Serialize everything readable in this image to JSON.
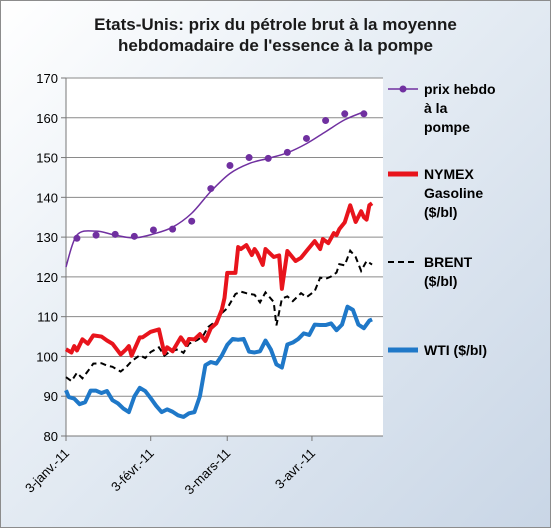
{
  "chart_data": {
    "type": "line",
    "title_line1": "Etats-Unis: prix du pétrole brut  à la moyenne",
    "title_line2": "hebdomadaire de l'essence à la pompe",
    "xlabel": "",
    "ylabel": "",
    "ylim": [
      80,
      170
    ],
    "y_ticks": [
      "80",
      "90",
      "100",
      "110",
      "120",
      "130",
      "140",
      "150",
      "160",
      "170"
    ],
    "x_ticks": [
      "3-janv.-11",
      "3-févr.-11",
      "3-mars-11",
      "3-avr.-11"
    ],
    "x_tick_days": [
      0,
      31,
      59,
      90
    ],
    "xlim_days": [
      0,
      116
    ],
    "series": [
      {
        "name_lines": [
          "prix hebdo",
          "à la",
          "pompe"
        ],
        "color": "#7030a0",
        "style": "dots+trend",
        "points_x": [
          0,
          4,
          11,
          18,
          25,
          32,
          39,
          46,
          53,
          60,
          67,
          74,
          81,
          88,
          95,
          102,
          109
        ],
        "points_y": [
          122,
          129.7,
          130.5,
          130.7,
          130.2,
          131.8,
          132.0,
          134.0,
          142.2,
          148.0,
          150.0,
          149.8,
          151.3,
          154.8,
          159.3,
          161.0,
          161.0
        ],
        "trend_x": [
          0,
          4,
          11,
          18,
          25,
          32,
          39,
          46,
          53,
          60,
          67,
          74,
          81,
          88,
          95,
          102,
          109
        ],
        "trend_y": [
          122.5,
          130.5,
          131.5,
          130.5,
          129.8,
          130.8,
          132.5,
          136.0,
          141.5,
          146.0,
          148.5,
          149.8,
          151.2,
          153.5,
          156.5,
          159.5,
          161.5
        ]
      },
      {
        "name_lines": [
          "NYMEX",
          "Gasoline",
          "($/bl)"
        ],
        "color": "#e8141c",
        "style": "solid-thick",
        "x": [
          0,
          2,
          3,
          4,
          6,
          8,
          10,
          13,
          15,
          17,
          20,
          22,
          23,
          24,
          27,
          28,
          31,
          34,
          36,
          37,
          39,
          42,
          44,
          45,
          47,
          49,
          51,
          53,
          55,
          56,
          57,
          58,
          59,
          60,
          62,
          63,
          64,
          66,
          68,
          69,
          70,
          72,
          73,
          76,
          78,
          79,
          81,
          84,
          86,
          88,
          91,
          93,
          94,
          96,
          98,
          99,
          100,
          102,
          104,
          106,
          108,
          109,
          110,
          111,
          112
        ],
        "y": [
          101.8,
          101,
          102.6,
          101.5,
          104.3,
          103.2,
          105.3,
          105.0,
          104.0,
          103.2,
          100.5,
          101.8,
          102.6,
          100.2,
          104.8,
          104.8,
          106.2,
          106.8,
          100.8,
          102.3,
          101.3,
          104.8,
          102.9,
          104.4,
          104.3,
          105.6,
          103.9,
          107.1,
          108.3,
          110.0,
          111.7,
          114.7,
          121.0,
          121.0,
          121.0,
          127.5,
          127.0,
          128.0,
          125.5,
          127.0,
          126.0,
          123.0,
          127.0,
          125.0,
          125.4,
          117.0,
          126.5,
          124.0,
          124.8,
          126.5,
          129.0,
          127.0,
          129.5,
          128.5,
          131.0,
          130.5,
          132.0,
          133.7,
          138.0,
          133.8,
          136.5,
          135.0,
          134.4,
          138.0,
          138.5
        ]
      },
      {
        "name_lines": [
          "BRENT",
          "($/bl)"
        ],
        "color": "#000000",
        "style": "dashed",
        "x": [
          0,
          2,
          4,
          6,
          8,
          10,
          13,
          15,
          17,
          20,
          22,
          24,
          27,
          29,
          31,
          34,
          36,
          38,
          41,
          43,
          45,
          48,
          50,
          52,
          55,
          57,
          59,
          62,
          64,
          66,
          69,
          71,
          73,
          76,
          77,
          79,
          81,
          83,
          86,
          88,
          91,
          93,
          95,
          97,
          99,
          100,
          102,
          104,
          106,
          108,
          110,
          112
        ],
        "y": [
          94.8,
          93.8,
          95.9,
          94.5,
          96.3,
          98.2,
          98.3,
          97.7,
          97.4,
          96.2,
          97.3,
          98.8,
          100.3,
          99.6,
          101.1,
          102.3,
          100.2,
          101.2,
          101.8,
          100.9,
          103.2,
          104.1,
          105.0,
          107.4,
          108.9,
          110.9,
          112.1,
          115.7,
          116.3,
          115.9,
          115.5,
          113.6,
          116.1,
          113.7,
          107.8,
          114.5,
          115.1,
          113.9,
          115.9,
          114.9,
          116.4,
          119.8,
          119.5,
          120.1,
          121.1,
          123.2,
          122.9,
          126.6,
          125.0,
          121.5,
          124.0,
          123.1
        ]
      },
      {
        "name_lines": [
          "WTI ($/bl)"
        ],
        "color": "#1f78c8",
        "style": "solid-thick",
        "x": [
          0,
          1,
          3,
          5,
          7,
          9,
          11,
          13,
          15,
          17,
          19,
          21,
          23,
          25,
          27,
          29,
          31,
          33,
          35,
          37,
          39,
          41,
          43,
          45,
          47,
          49,
          51,
          53,
          55,
          57,
          59,
          61,
          63,
          65,
          67,
          69,
          71,
          73,
          75,
          77,
          79,
          81,
          83,
          85,
          87,
          89,
          91,
          93,
          95,
          97,
          99,
          101,
          103,
          105,
          107,
          109,
          111,
          112
        ],
        "y": [
          91.5,
          89.8,
          89.4,
          88.0,
          88.5,
          91.4,
          91.4,
          90.8,
          91.3,
          89.0,
          88.2,
          86.9,
          86.0,
          89.9,
          92.1,
          91.3,
          89.5,
          87.6,
          86.0,
          86.7,
          86.1,
          85.2,
          84.8,
          85.7,
          86.0,
          90.0,
          97.8,
          98.6,
          98.2,
          100.2,
          102.9,
          104.4,
          104.2,
          104.4,
          101.2,
          101.0,
          101.3,
          104.0,
          101.7,
          98.0,
          97.2,
          103.0,
          103.5,
          104.4,
          105.8,
          105.4,
          108.0,
          107.9,
          107.9,
          108.3,
          106.6,
          108.0,
          112.5,
          111.7,
          108.0,
          107.1,
          109.0,
          109.3
        ]
      }
    ]
  }
}
